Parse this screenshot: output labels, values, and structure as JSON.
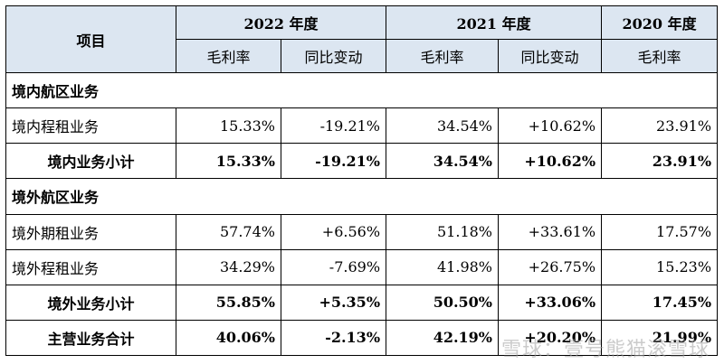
{
  "header": {
    "item_label": "项目",
    "years": [
      "2022 年度",
      "2021 年度",
      "2020 年度"
    ],
    "sub": [
      "毛利率",
      "同比变动",
      "毛利率",
      "同比变动",
      "毛利率"
    ]
  },
  "rows": [
    {
      "type": "section",
      "name": "境内航区业务"
    },
    {
      "type": "data",
      "name": "境内程租业务",
      "v": [
        "15.33%",
        "-19.21%",
        "34.54%",
        "+10.62%",
        "23.91%"
      ]
    },
    {
      "type": "subtotal",
      "name": "境内业务小计",
      "v": [
        "15.33%",
        "-19.21%",
        "34.54%",
        "+10.62%",
        "23.91%"
      ]
    },
    {
      "type": "section",
      "name": "境外航区业务"
    },
    {
      "type": "data",
      "name": "境外期租业务",
      "v": [
        "57.74%",
        "+6.56%",
        "51.18%",
        "+33.61%",
        "17.57%"
      ]
    },
    {
      "type": "data",
      "name": "境外程租业务",
      "v": [
        "34.29%",
        "-7.69%",
        "41.98%",
        "+26.75%",
        "15.23%"
      ]
    },
    {
      "type": "subtotal",
      "name": "境外业务小计",
      "v": [
        "55.85%",
        "+5.35%",
        "50.50%",
        "+33.06%",
        "17.45%"
      ]
    },
    {
      "type": "subtotal",
      "name": "主营业务合计",
      "v": [
        "40.06%",
        "-2.13%",
        "42.19%",
        "+20.20%",
        "21.99%"
      ]
    }
  ],
  "watermark": "雪球：壹号熊猫滚雪球"
}
